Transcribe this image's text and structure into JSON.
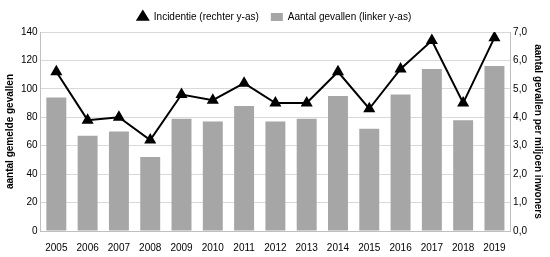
{
  "chart_data": {
    "type": "bar",
    "categories": [
      "2005",
      "2006",
      "2007",
      "2008",
      "2009",
      "2010",
      "2011",
      "2012",
      "2013",
      "2014",
      "2015",
      "2016",
      "2017",
      "2018",
      "2019"
    ],
    "series": [
      {
        "name": "Aantal gevallen (linker y-as)",
        "type": "bar",
        "color": "#a6a6a6",
        "values": [
          94,
          67,
          70,
          52,
          79,
          77,
          88,
          77,
          79,
          95,
          72,
          96,
          114,
          78,
          116
        ]
      },
      {
        "name": "Incidentie (rechter y-as)",
        "type": "line",
        "axis": "y2",
        "color": "#000000",
        "marker": "triangle",
        "line_style": "solid",
        "values": [
          5.6,
          3.9,
          4.0,
          3.2,
          4.8,
          4.6,
          5.2,
          4.5,
          4.5,
          5.6,
          4.3,
          5.7,
          6.7,
          4.5,
          6.8
        ]
      }
    ],
    "y_label": "aantal gemelde gevallen",
    "y2_label": "aantal gevallen per miljoen inwoners",
    "ylim": [
      0,
      140
    ],
    "yticks": [
      0,
      20,
      40,
      60,
      80,
      100,
      120,
      140
    ],
    "y2lim": [
      0,
      7
    ],
    "y2ticks": [
      {
        "value": 0,
        "label": "0,0"
      },
      {
        "value": 1,
        "label": "1,0"
      },
      {
        "value": 2,
        "label": "2,0"
      },
      {
        "value": 3,
        "label": "3,0"
      },
      {
        "value": 4,
        "label": "4,0"
      },
      {
        "value": 5,
        "label": "5,0"
      },
      {
        "value": 6,
        "label": "6,0"
      },
      {
        "value": 7,
        "label": "7,0"
      }
    ],
    "grid": true,
    "legend": "top"
  }
}
